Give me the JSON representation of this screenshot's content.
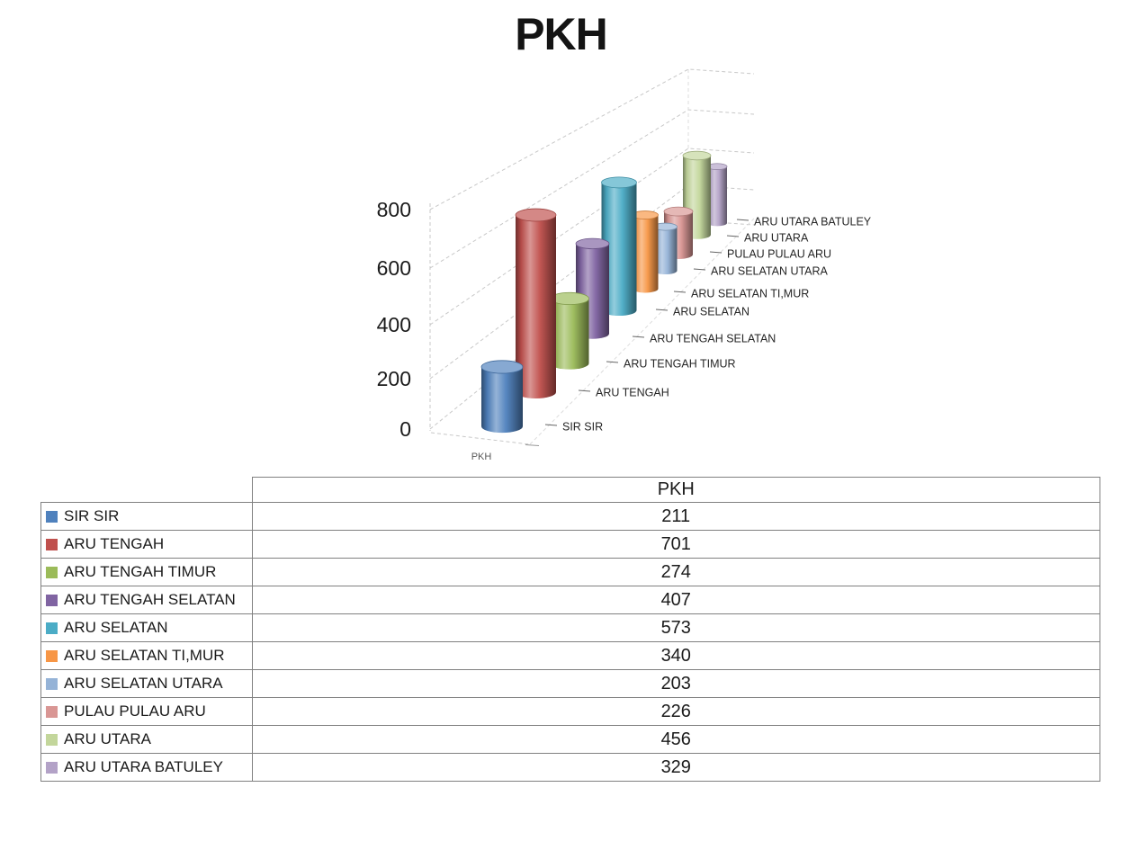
{
  "chart_data": {
    "type": "bar",
    "subtype": "3d-cylinder",
    "title": "PKH",
    "series_name": "PKH",
    "x_axis_label": "PKH",
    "categories": [
      "SIR SIR",
      "ARU TENGAH",
      "ARU TENGAH TIMUR",
      "ARU TENGAH SELATAN",
      "ARU SELATAN",
      "ARU SELATAN TI,MUR",
      "ARU SELATAN UTARA",
      "PULAU PULAU ARU",
      "ARU UTARA",
      "ARU UTARA BATULEY"
    ],
    "values": [
      211,
      701,
      274,
      407,
      573,
      340,
      203,
      226,
      456,
      329
    ],
    "colors": [
      "#4F81BD",
      "#C0504D",
      "#9BBB59",
      "#8064A2",
      "#4BACC6",
      "#F79646",
      "#95B3D7",
      "#D99694",
      "#C3D69B",
      "#B3A2C7"
    ],
    "y_ticks": [
      0,
      200,
      400,
      600,
      800
    ],
    "ylim": [
      0,
      800
    ],
    "grid": true,
    "grid_color": "#c8c8c8",
    "axis_text_color": "#1a1a1a",
    "category_text_color": "#262626",
    "legend_position": "table-below"
  },
  "table": {
    "value_column_header": "PKH",
    "border_color": "#808080",
    "rows": [
      {
        "label": "SIR SIR",
        "value": "211",
        "swatch_color": "#4F81BD"
      },
      {
        "label": "ARU TENGAH",
        "value": "701",
        "swatch_color": "#C0504D"
      },
      {
        "label": "ARU TENGAH TIMUR",
        "value": "274",
        "swatch_color": "#9BBB59"
      },
      {
        "label": "ARU TENGAH SELATAN",
        "value": "407",
        "swatch_color": "#8064A2"
      },
      {
        "label": "ARU SELATAN",
        "value": "573",
        "swatch_color": "#4BACC6"
      },
      {
        "label": "ARU SELATAN TI,MUR",
        "value": "340",
        "swatch_color": "#F79646"
      },
      {
        "label": "ARU SELATAN UTARA",
        "value": "203",
        "swatch_color": "#95B3D7"
      },
      {
        "label": "PULAU PULAU ARU",
        "value": "226",
        "swatch_color": "#D99694"
      },
      {
        "label": "ARU UTARA",
        "value": "456",
        "swatch_color": "#C3D69B"
      },
      {
        "label": "ARU UTARA BATULEY",
        "value": "329",
        "swatch_color": "#B3A2C7"
      }
    ]
  }
}
